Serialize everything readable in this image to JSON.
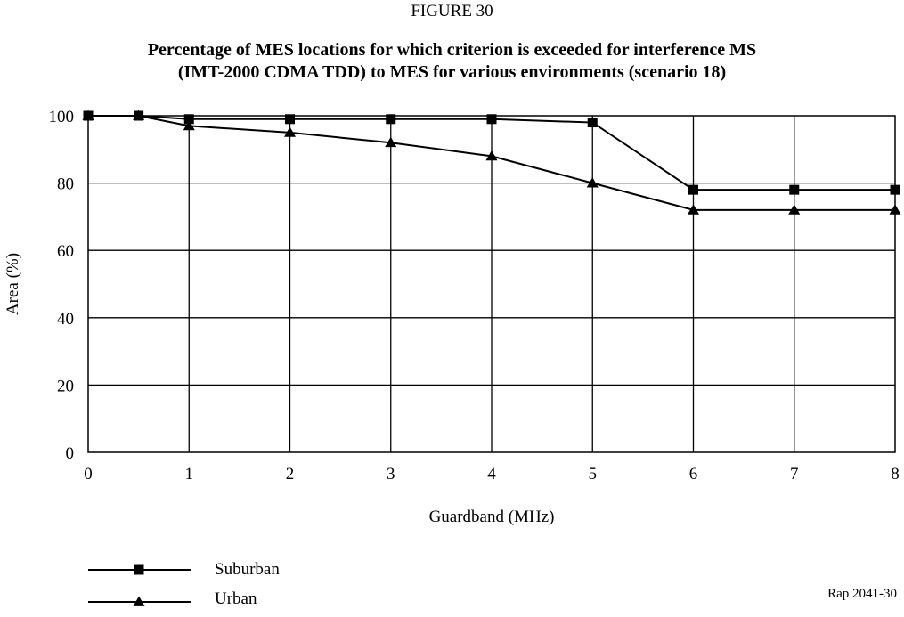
{
  "figure_label": "FIGURE 30",
  "title_lines": [
    "Percentage of MES locations for which criterion is exceeded for interference MS",
    "(IMT-2000 CDMA TDD) to MES for various environments (scenario 18)"
  ],
  "footer_ref": "Rap 2041-30",
  "chart_data": {
    "type": "line",
    "title": "Percentage of MES locations for which criterion is exceeded for interference MS (IMT-2000 CDMA TDD) to MES for various environments (scenario 18)",
    "xlabel": "Guardband (MHz)",
    "ylabel": "Area (%)",
    "xlim": [
      0,
      8
    ],
    "ylim": [
      0,
      100
    ],
    "xticks": [
      0,
      1,
      2,
      3,
      4,
      5,
      6,
      7,
      8
    ],
    "yticks": [
      0,
      20,
      40,
      60,
      80,
      100
    ],
    "grid": true,
    "legend_position": "bottom-left, below chart",
    "series": [
      {
        "name": "Suburban",
        "marker": "square",
        "color": "#000000",
        "x": [
          0,
          0.5,
          1,
          2,
          3,
          4,
          5,
          6,
          7,
          8
        ],
        "y": [
          100,
          100,
          99,
          99,
          99,
          99,
          98,
          78,
          78,
          78
        ]
      },
      {
        "name": "Urban",
        "marker": "triangle",
        "color": "#000000",
        "x": [
          0,
          0.5,
          1,
          2,
          3,
          4,
          5,
          6,
          7,
          8
        ],
        "y": [
          100,
          100,
          97,
          95,
          92,
          88,
          80,
          72,
          72,
          72
        ]
      }
    ]
  }
}
